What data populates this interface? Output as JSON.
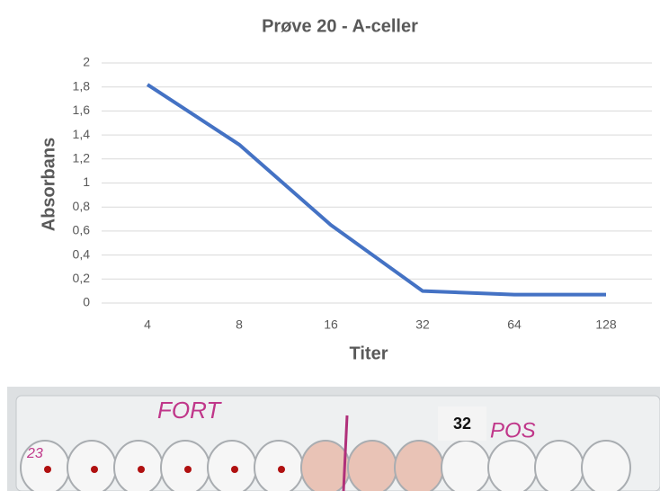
{
  "chart_data": {
    "type": "line",
    "title": "Prøve 20 - A-celler",
    "x_label": "Titer",
    "y_label": "Absorbans",
    "categories": [
      "4",
      "8",
      "16",
      "32",
      "64",
      "128"
    ],
    "values": [
      1.82,
      1.32,
      0.65,
      0.1,
      0.07,
      0.07
    ],
    "color": "#4472c4",
    "ylim": [
      0,
      2
    ],
    "yticks": [
      0,
      {
        "value": 0.2,
        "label": "0,2"
      },
      {
        "value": 0.4,
        "label": "0,4"
      },
      {
        "value": 0.6,
        "label": "0,6"
      },
      {
        "value": 0.8,
        "label": "0,8"
      },
      1,
      {
        "value": 1.2,
        "label": "1,2"
      },
      {
        "value": 1.4,
        "label": "1,4"
      },
      {
        "value": 1.6,
        "label": "1,6"
      },
      {
        "value": 1.8,
        "label": "1,8"
      },
      2
    ],
    "grid": true
  },
  "photo": {
    "label_box": "32",
    "handwriting": [
      "FORT",
      "POS",
      "23"
    ]
  }
}
